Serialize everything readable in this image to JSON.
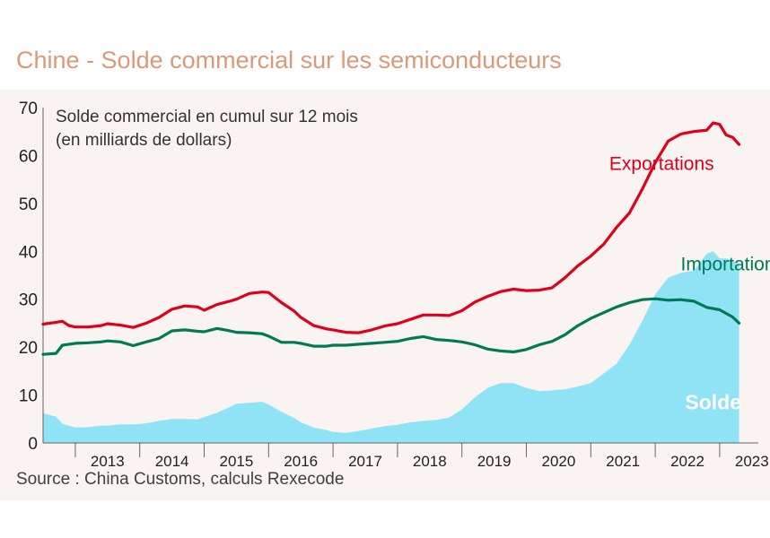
{
  "title": "Chine - Solde commercial sur les semiconducteurs",
  "source": "Source : China Customs, calculs Rexecode",
  "chart_data": {
    "type": "line",
    "subtitle_lines": [
      "Solde commercial en cumul sur 12 mois",
      "(en milliards de dollars)"
    ],
    "xlabel": "",
    "ylabel": "",
    "ylim": [
      0,
      70
    ],
    "yticks": [
      0,
      10,
      20,
      30,
      40,
      50,
      60,
      70
    ],
    "xlim": [
      2012.5,
      2023.6
    ],
    "xticks": [
      "2013",
      "2014",
      "2015",
      "2016",
      "2017",
      "2018",
      "2019",
      "2020",
      "2021",
      "2022",
      "2023"
    ],
    "grid": false,
    "legend": "inline labels",
    "series": [
      {
        "name": "Exportations",
        "color": "#e0001b",
        "style": "line",
        "label_position": [
          2022.1,
          57
        ],
        "x": [
          2012.5,
          2012.7,
          2012.8,
          2012.9,
          2013.0,
          2013.2,
          2013.4,
          2013.5,
          2013.7,
          2013.9,
          2014.1,
          2014.3,
          2014.5,
          2014.7,
          2014.9,
          2015.0,
          2015.2,
          2015.4,
          2015.5,
          2015.7,
          2015.9,
          2016.0,
          2016.2,
          2016.4,
          2016.5,
          2016.7,
          2016.9,
          2017.0,
          2017.2,
          2017.4,
          2017.6,
          2017.8,
          2018.0,
          2018.2,
          2018.4,
          2018.6,
          2018.8,
          2019.0,
          2019.2,
          2019.4,
          2019.6,
          2019.8,
          2020.0,
          2020.2,
          2020.4,
          2020.6,
          2020.8,
          2021.0,
          2021.2,
          2021.4,
          2021.6,
          2021.8,
          2022.0,
          2022.2,
          2022.4,
          2022.6,
          2022.8,
          2022.9,
          2023.0,
          2023.1,
          2023.2,
          2023.3
        ],
        "values": [
          24.8,
          25.2,
          25.4,
          24.5,
          24.2,
          24.2,
          24.5,
          24.9,
          24.6,
          24.1,
          25.0,
          26.2,
          27.9,
          28.6,
          28.4,
          27.7,
          28.9,
          29.6,
          30.0,
          31.2,
          31.5,
          31.4,
          29.3,
          27.5,
          26.2,
          24.5,
          23.8,
          23.6,
          23.1,
          23.0,
          23.6,
          24.4,
          24.9,
          25.8,
          26.7,
          26.7,
          26.6,
          27.6,
          29.4,
          30.6,
          31.6,
          32.1,
          31.8,
          31.9,
          32.4,
          34.5,
          37.0,
          39.0,
          41.5,
          45.0,
          48.0,
          53.0,
          58.5,
          63.0,
          64.5,
          65.0,
          65.3,
          66.8,
          66.5,
          64.3,
          63.8,
          62.3
        ]
      },
      {
        "name": "Importations",
        "color": "#007a55",
        "style": "line",
        "label_position": [
          2023.2,
          36
        ],
        "x": [
          2012.5,
          2012.7,
          2012.8,
          2013.0,
          2013.2,
          2013.4,
          2013.5,
          2013.7,
          2013.9,
          2014.1,
          2014.3,
          2014.5,
          2014.7,
          2014.9,
          2015.0,
          2015.2,
          2015.4,
          2015.5,
          2015.7,
          2015.9,
          2016.0,
          2016.2,
          2016.4,
          2016.5,
          2016.7,
          2016.9,
          2017.0,
          2017.2,
          2017.4,
          2017.6,
          2017.8,
          2018.0,
          2018.2,
          2018.4,
          2018.6,
          2018.8,
          2019.0,
          2019.2,
          2019.4,
          2019.6,
          2019.8,
          2020.0,
          2020.2,
          2020.4,
          2020.6,
          2020.8,
          2021.0,
          2021.2,
          2021.4,
          2021.6,
          2021.8,
          2022.0,
          2022.2,
          2022.4,
          2022.6,
          2022.8,
          2023.0,
          2023.2,
          2023.3
        ],
        "values": [
          18.5,
          18.7,
          20.4,
          20.8,
          20.9,
          21.1,
          21.3,
          21.1,
          20.3,
          21.1,
          21.8,
          23.4,
          23.6,
          23.3,
          23.2,
          23.9,
          23.4,
          23.1,
          23.0,
          22.8,
          22.3,
          21.0,
          21.0,
          20.8,
          20.2,
          20.2,
          20.4,
          20.4,
          20.6,
          20.8,
          21.0,
          21.2,
          21.8,
          22.2,
          21.6,
          21.4,
          21.1,
          20.5,
          19.6,
          19.2,
          19.0,
          19.5,
          20.5,
          21.2,
          22.6,
          24.5,
          26.0,
          27.2,
          28.4,
          29.3,
          29.9,
          30.1,
          29.8,
          29.9,
          29.6,
          28.3,
          27.8,
          26.3,
          25.0
        ]
      },
      {
        "name": "Solde",
        "color": "#8fe3f4",
        "style": "area",
        "label_position": [
          2022.9,
          7
        ],
        "x": [
          2012.5,
          2012.7,
          2012.8,
          2013.0,
          2013.2,
          2013.4,
          2013.5,
          2013.7,
          2013.9,
          2014.1,
          2014.3,
          2014.5,
          2014.7,
          2014.9,
          2015.0,
          2015.2,
          2015.4,
          2015.5,
          2015.7,
          2015.9,
          2016.0,
          2016.2,
          2016.4,
          2016.5,
          2016.7,
          2016.9,
          2017.0,
          2017.2,
          2017.4,
          2017.6,
          2017.8,
          2018.0,
          2018.2,
          2018.4,
          2018.6,
          2018.8,
          2019.0,
          2019.2,
          2019.4,
          2019.6,
          2019.8,
          2020.0,
          2020.2,
          2020.4,
          2020.6,
          2020.8,
          2021.0,
          2021.2,
          2021.4,
          2021.6,
          2021.8,
          2022.0,
          2022.2,
          2022.4,
          2022.6,
          2022.8,
          2022.9,
          2023.0,
          2023.1,
          2023.2,
          2023.3
        ],
        "values": [
          6.2,
          5.5,
          4.0,
          3.2,
          3.3,
          3.6,
          3.6,
          3.9,
          3.9,
          4.1,
          4.6,
          5.0,
          5.0,
          4.9,
          5.4,
          6.3,
          7.5,
          8.2,
          8.4,
          8.6,
          8.0,
          6.5,
          5.2,
          4.3,
          3.2,
          2.7,
          2.3,
          2.1,
          2.5,
          3.0,
          3.5,
          3.8,
          4.3,
          4.6,
          4.8,
          5.3,
          7.0,
          9.5,
          11.5,
          12.5,
          12.5,
          11.5,
          10.8,
          11.0,
          11.2,
          11.8,
          12.5,
          14.5,
          16.5,
          20.5,
          25.5,
          31.0,
          34.5,
          35.5,
          36.0,
          39.5,
          40.0,
          38.5,
          38.5,
          38.0,
          37.5
        ]
      }
    ]
  }
}
